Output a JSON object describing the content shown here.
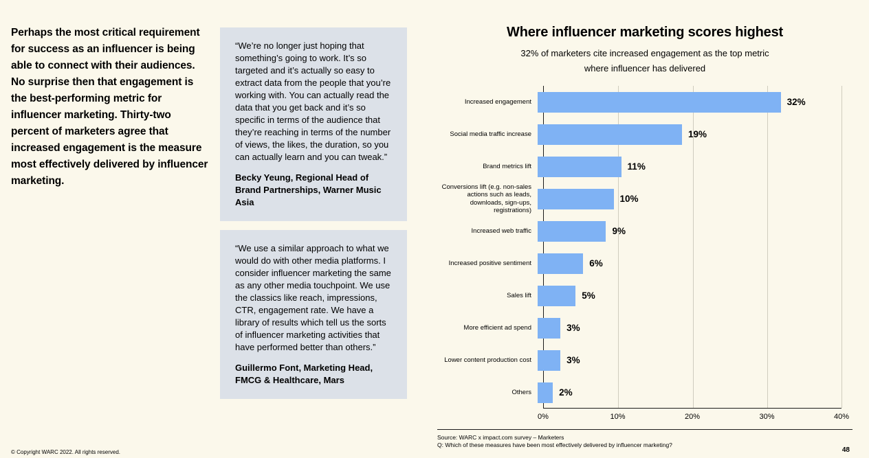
{
  "page": {
    "footer_left": "© Copyright WARC 2022. All rights reserved.",
    "page_number": "48"
  },
  "colors": {
    "background": "#fbf8eb",
    "quote_box": "#dce1e8",
    "bar": "#7fb2f4"
  },
  "intro": {
    "text": "Perhaps the most critical requirement for success as an influencer is being able to connect with their audiences. No surprise then that engagement is the best-performing metric for influencer marketing. Thirty-two percent of marketers agree that increased engagement is the measure most effectively delivered by influencer marketing."
  },
  "quotes": [
    {
      "text": "“We’re no longer just hoping that something’s going to work. It’s so targeted and it’s actually so easy to extract data from the people that you’re working with. You can actually read the data that you get back and it’s so specific in terms of the audience that they’re reaching in terms of the number of views, the likes, the duration, so you can actually learn and you can tweak.”",
      "attribution": "Becky Yeung, Regional Head of Brand Partnerships, Warner Music Asia"
    },
    {
      "text": "“We use a similar approach to what we would do with other media platforms. I consider influencer marketing the same as any other media touchpoint. We use the classics like reach, impressions, CTR, engagement rate. We have a library of results which tell us the sorts of influencer marketing activities that have performed better than others.”",
      "attribution": "Guillermo Font, Marketing Head, FMCG & Healthcare, Mars"
    }
  ],
  "chart": {
    "title": "Where influencer marketing scores highest",
    "subtitle_line1": "32% of marketers cite increased engagement as the top metric",
    "subtitle_line2": "where influencer has delivered",
    "source": "Source: WARC x impact.com survey – Marketers",
    "question": "Q: Which of these measures have been most effectively delivered by influencer marketing?"
  },
  "chart_data": {
    "type": "bar",
    "orientation": "horizontal",
    "title": "Where influencer marketing scores highest",
    "categories": [
      "Increased engagement",
      "Social media traffic increase",
      "Brand metrics lift",
      "Conversions lift (e.g. non-sales actions such as leads, downloads, sign-ups, registrations)",
      "Increased web traffic",
      "Increased positive sentiment",
      "Sales lift",
      "More efficient ad spend",
      "Lower content production cost",
      "Others"
    ],
    "values": [
      32,
      19,
      11,
      10,
      9,
      6,
      5,
      3,
      3,
      2
    ],
    "value_labels": [
      "32%",
      "19%",
      "11%",
      "10%",
      "9%",
      "6%",
      "5%",
      "3%",
      "3%",
      "2%"
    ],
    "xlim": [
      0,
      40
    ],
    "x_ticks": [
      "0%",
      "10%",
      "20%",
      "30%",
      "40%"
    ],
    "bar_color": "#7fb2f4",
    "grid": true,
    "legend": "none"
  }
}
